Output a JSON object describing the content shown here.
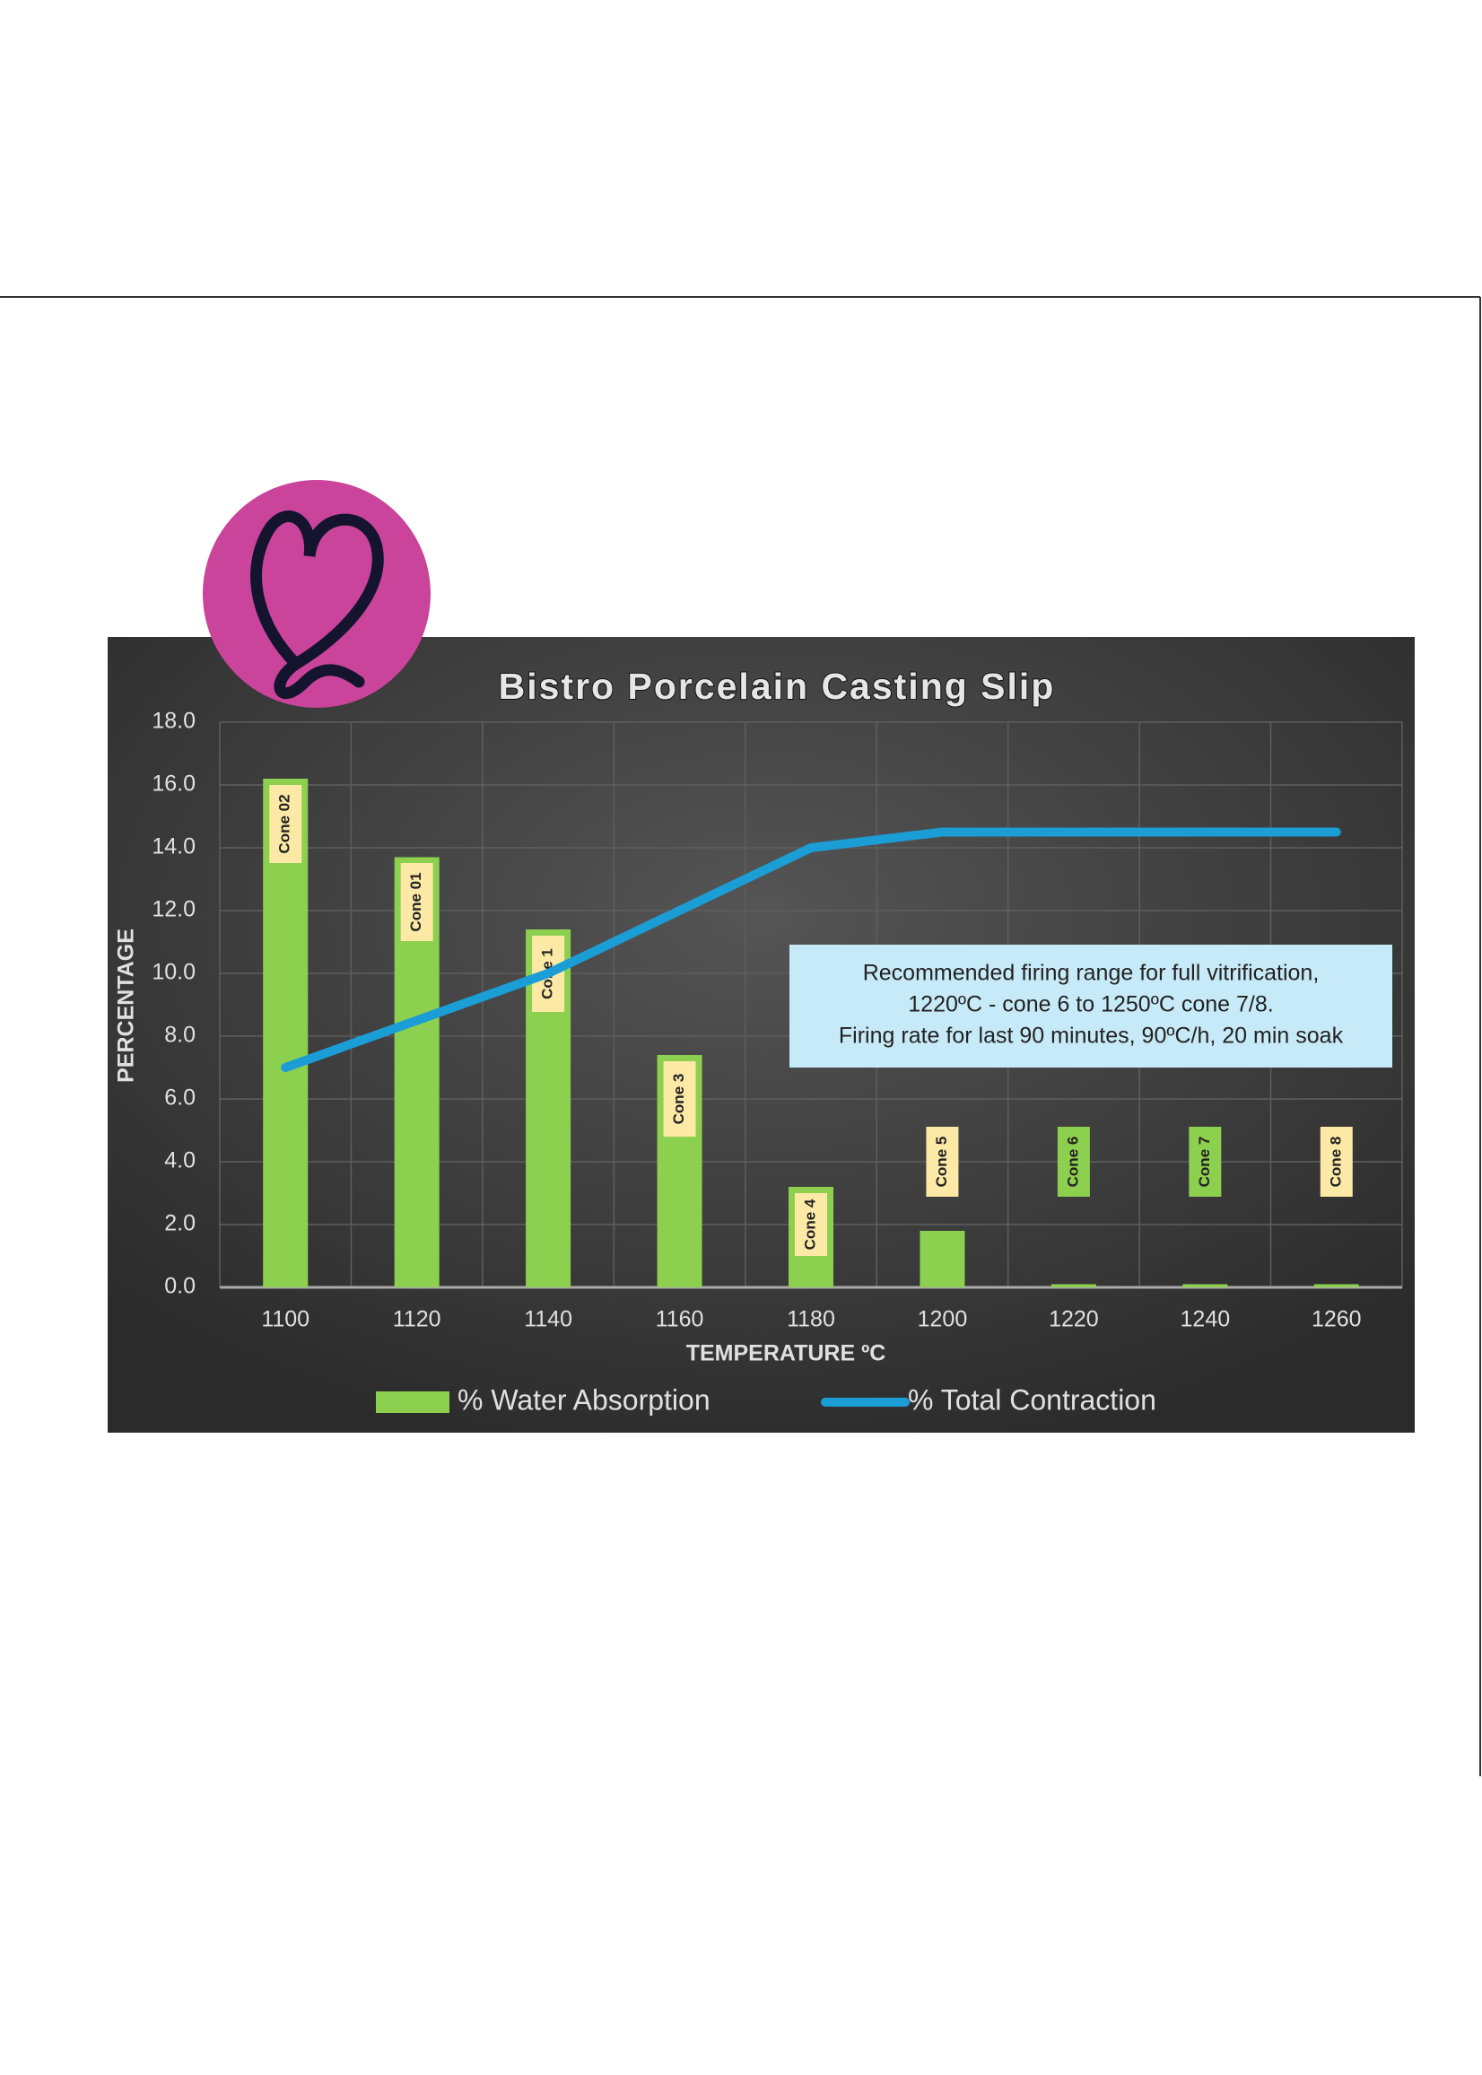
{
  "chart_data": {
    "type": "bar",
    "title": "Bistro Porcelain Casting Slip",
    "x_label": "TEMPERATURE ºC",
    "y_label": "PERCENTAGE",
    "categories": [
      "1100",
      "1120",
      "1140",
      "1160",
      "1180",
      "1200",
      "1220",
      "1240",
      "1260"
    ],
    "series": [
      {
        "name": "% Water Absorption",
        "type": "bar",
        "color": "#8dd04f",
        "values": [
          16.2,
          13.7,
          11.4,
          7.4,
          3.2,
          1.8,
          0.1,
          0.1,
          0.1
        ]
      },
      {
        "name": "% Total Contraction",
        "type": "line",
        "color": "#1b9dd6",
        "values": [
          7.0,
          8.5,
          10.0,
          12.0,
          14.0,
          14.5,
          14.5,
          14.5,
          14.5
        ]
      }
    ],
    "ylim": [
      0,
      18
    ],
    "yticks": [
      {
        "value": 0,
        "label": "0.0"
      },
      {
        "value": 2,
        "label": "2.0"
      },
      {
        "value": 4,
        "label": "4.0"
      },
      {
        "value": 6,
        "label": "6.0"
      },
      {
        "value": 8,
        "label": "8.0"
      },
      {
        "value": 10,
        "label": "10.0"
      },
      {
        "value": 12,
        "label": "12.0"
      },
      {
        "value": 14,
        "label": "14.0"
      },
      {
        "value": 16,
        "label": "16.0"
      },
      {
        "value": 18,
        "label": "18.0"
      }
    ],
    "grid": true,
    "cone_labels": [
      {
        "text": "Cone 02",
        "color": "#fce9a6"
      },
      {
        "text": "Cone 01",
        "color": "#fce9a6"
      },
      {
        "text": "Cone 1",
        "color": "#fce9a6"
      },
      {
        "text": "Cone 3",
        "color": "#fce9a6"
      },
      {
        "text": "Cone 4",
        "color": "#fce9a6"
      },
      {
        "text": "Cone 5",
        "color": "#fce9a6"
      },
      {
        "text": "Cone 6",
        "color": "#8dd04f"
      },
      {
        "text": "Cone 7",
        "color": "#8dd04f"
      },
      {
        "text": "Cone 8",
        "color": "#fce9a6"
      }
    ],
    "note": [
      "Recommended firing range for full vitrification,",
      "1220ºC - cone 6 to 1250ºC cone 7/8.",
      "Firing rate for last 90 minutes, 90ºC/h, 20 min soak"
    ]
  }
}
